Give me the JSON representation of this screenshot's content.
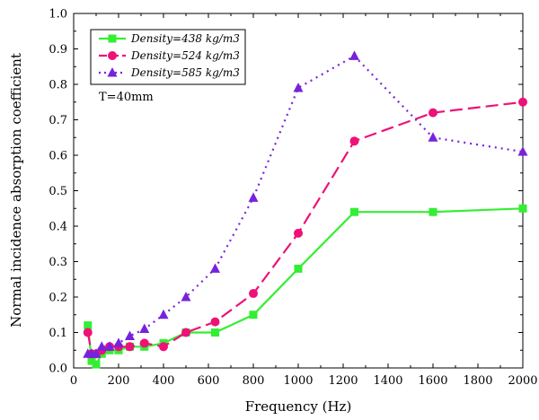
{
  "chart_data": {
    "type": "line",
    "xlabel": "Frequency (Hz)",
    "ylabel": "Normal incidence absorption coefficient",
    "xlim": [
      0,
      2000
    ],
    "ylim": [
      0.0,
      1.0
    ],
    "xticks": [
      0,
      200,
      400,
      600,
      800,
      1000,
      1200,
      1400,
      1600,
      1800,
      2000
    ],
    "yticks": [
      0.0,
      0.1,
      0.2,
      0.3,
      0.4,
      0.5,
      0.6,
      0.7,
      0.8,
      0.9,
      1.0
    ],
    "xtick_labels": [
      "0",
      "200",
      "400",
      "600",
      "800",
      "1000",
      "1200",
      "1400",
      "1600",
      "1800",
      "2000"
    ],
    "ytick_labels": [
      "0.0",
      "0.1",
      "0.2",
      "0.3",
      "0.4",
      "0.5",
      "0.6",
      "0.7",
      "0.8",
      "0.9",
      "1.0"
    ],
    "grid": false,
    "legend_position": "top-left",
    "annotation": "T=40mm",
    "series": [
      {
        "name": "Density=438 kg/m3",
        "color": "#33ee33",
        "marker": "square",
        "line_style": "solid",
        "x": [
          63,
          80,
          100,
          125,
          160,
          200,
          250,
          315,
          400,
          500,
          630,
          800,
          1000,
          1250,
          1600,
          2000
        ],
        "y": [
          0.12,
          0.02,
          0.01,
          0.04,
          0.05,
          0.05,
          0.06,
          0.06,
          0.07,
          0.1,
          0.1,
          0.15,
          0.28,
          0.44,
          0.44,
          0.45
        ]
      },
      {
        "name": "Density=524 kg/m3",
        "color": "#ee1177",
        "marker": "circle",
        "line_style": "dashed",
        "x": [
          63,
          80,
          100,
          125,
          160,
          200,
          250,
          315,
          400,
          500,
          630,
          800,
          1000,
          1250,
          1600,
          2000
        ],
        "y": [
          0.1,
          0.04,
          0.04,
          0.05,
          0.06,
          0.06,
          0.06,
          0.07,
          0.06,
          0.1,
          0.13,
          0.21,
          0.38,
          0.64,
          0.72,
          0.75
        ]
      },
      {
        "name": "Density=585 kg/m3",
        "color": "#7722dd",
        "marker": "triangle",
        "line_style": "dotted",
        "x": [
          63,
          80,
          100,
          125,
          160,
          200,
          250,
          315,
          400,
          500,
          630,
          800,
          1000,
          1250,
          1600,
          2000
        ],
        "y": [
          0.04,
          0.04,
          0.04,
          0.06,
          0.06,
          0.07,
          0.09,
          0.11,
          0.15,
          0.2,
          0.28,
          0.48,
          0.79,
          0.88,
          0.65,
          0.61
        ]
      }
    ]
  }
}
